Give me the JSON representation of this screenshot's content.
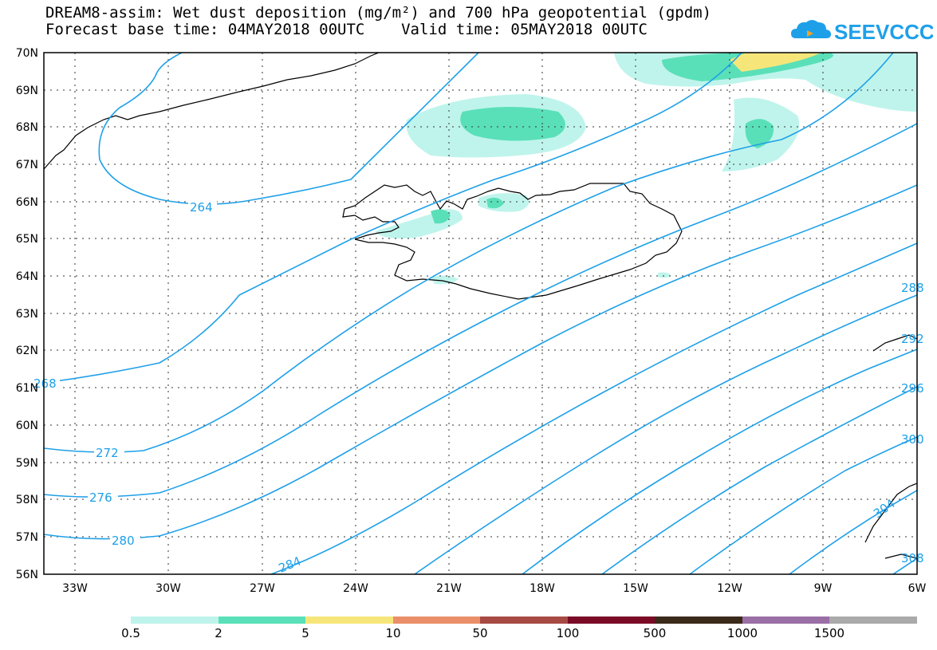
{
  "title_line1": "DREAM8-assim: Wet dust deposition (mg/m²) and 700 hPa geopotential (gpdm)",
  "title_line2": "Forecast base time: 04MAY2018 00UTC    Valid time: 05MAY2018 00UTC",
  "logo_text": "SEEVCCC",
  "axes": {
    "lat_labels": [
      "70N",
      "69N",
      "68N",
      "67N",
      "66N",
      "65N",
      "64N",
      "63N",
      "62N",
      "61N",
      "60N",
      "59N",
      "58N",
      "57N",
      "56N"
    ],
    "lon_labels": [
      "33W",
      "30W",
      "27W",
      "24W",
      "21W",
      "18W",
      "15W",
      "12W",
      "9W",
      "6W"
    ]
  },
  "contour_labels": [
    "264",
    "268",
    "272",
    "276",
    "280",
    "284",
    "288",
    "292",
    "296",
    "300",
    "304",
    "308"
  ],
  "colorbar": {
    "labels": [
      "0.5",
      "2",
      "5",
      "10",
      "50",
      "100",
      "500",
      "1000",
      "1500"
    ],
    "colors": [
      "#bff4ec",
      "#5ae0b8",
      "#f6e67a",
      "#ea8f6a",
      "#a84a44",
      "#7a0a26",
      "#3a2a1a",
      "#9a6fa6",
      "#aaaaaa"
    ]
  }
}
